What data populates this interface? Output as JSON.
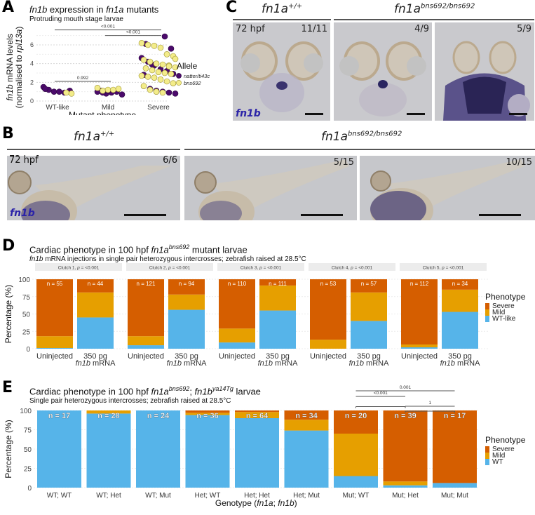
{
  "panels": {
    "A": {
      "letter": "A",
      "title_gene": "fn1b",
      "title_mid": " expression in ",
      "title_gene2": "fn1a",
      "title_end": " mutants",
      "subtitle": "Protruding mouth stage larvae",
      "ylabel_line1_gene": "fn1b",
      "ylabel_line1_rest": " mRNA levels",
      "ylabel_line2_start": "(normalised to ",
      "ylabel_line2_gene": "rpl13a",
      "ylabel_line2_end": ")",
      "xlabel": "Mutant phenotype",
      "legend_title": "Allele",
      "legend": [
        {
          "label": "natter/ti43c",
          "color": "#4b0a6b"
        },
        {
          "label": "bns692",
          "color": "#f3ec8a"
        }
      ],
      "comparisons": [
        {
          "from": "WT-like",
          "to": "Severe",
          "label": "<0.001"
        },
        {
          "from": "Mild",
          "to": "Severe",
          "label": "<0.001"
        },
        {
          "from": "WT-like",
          "to": "Mild",
          "label": "0.992"
        }
      ]
    },
    "B": {
      "letter": "B",
      "wt_label": "fn1a",
      "wt_sup": "+/+",
      "mut_label": "fn1a",
      "mut_sup": "bns692/bns692",
      "images": [
        {
          "stage": "72 hpf",
          "count": "6/6",
          "stain": "fn1b"
        },
        {
          "stage": "",
          "count": "5/15",
          "stain": ""
        },
        {
          "stage": "",
          "count": "10/15",
          "stain": ""
        }
      ]
    },
    "C": {
      "letter": "C",
      "wt_label": "fn1a",
      "wt_sup": "+/+",
      "mut_label": "fn1a",
      "mut_sup": "bns692/bns692",
      "images": [
        {
          "stage": "72 hpf",
          "count": "11/11",
          "stain": "fn1b"
        },
        {
          "stage": "",
          "count": "4/9",
          "stain": ""
        },
        {
          "stage": "",
          "count": "5/9",
          "stain": ""
        }
      ]
    },
    "D": {
      "letter": "D",
      "title_start": "Cardiac phenotype in 100 hpf ",
      "title_gene": "fn1a",
      "title_sup": "bns692",
      "title_end": " mutant larvae",
      "subtitle_gene": "fn1b",
      "subtitle_rest": " mRNA injections in single pair heterozygous intercrosses; zebrafish raised at 28.5°C"
    },
    "E": {
      "letter": "E",
      "title_start": "Cardiac phenotype in 100 hpf ",
      "title_gene": "fn1a",
      "title_sup": "bns692",
      "title_sep": "; ",
      "title_gene2": "fn1b",
      "title_sup2": "ya14Tg",
      "title_end": " larvae",
      "subtitle": "Single pair heterozygous intercrosses; zebrafish raised at 28.5°C",
      "xlabel_start": "Genotype (",
      "xlabel_gene1": "fn1a",
      "xlabel_sep": "; ",
      "xlabel_gene2": "fn1b",
      "xlabel_end": ")"
    }
  },
  "colors": {
    "severe": "#d55e00",
    "mild": "#e69f00",
    "wt": "#56b4e9",
    "purple": "#4b0a6b",
    "yellow": "#f3ec8a"
  },
  "chart_data": [
    {
      "id": "A",
      "type": "scatter",
      "title": "fn1b expression in fn1a mutants",
      "subtitle": "Protruding mouth stage larvae",
      "xlabel": "Mutant phenotype",
      "ylabel": "fn1b mRNA levels (normalised to rpl13a)",
      "categories": [
        "WT-like",
        "Mild",
        "Severe"
      ],
      "yticks": [
        0,
        2,
        4,
        6
      ],
      "ylim": [
        0,
        7.2
      ],
      "grid": true,
      "legend_position": "right",
      "series": [
        {
          "name": "natter/ti43c",
          "points": [
            {
              "x": "WT-like",
              "y": 1.5
            },
            {
              "x": "WT-like",
              "y": 1.2
            },
            {
              "x": "WT-like",
              "y": 1.0
            },
            {
              "x": "WT-like",
              "y": 1.0
            },
            {
              "x": "WT-like",
              "y": 0.9
            },
            {
              "x": "WT-like",
              "y": 1.1
            },
            {
              "x": "WT-like",
              "y": 1.3
            },
            {
              "x": "Mild",
              "y": 1.1
            },
            {
              "x": "Mild",
              "y": 0.8
            },
            {
              "x": "Mild",
              "y": 0.9
            },
            {
              "x": "Mild",
              "y": 1.0
            },
            {
              "x": "Mild",
              "y": 0.7
            },
            {
              "x": "Mild",
              "y": 1.0
            },
            {
              "x": "Mild",
              "y": 0.9
            },
            {
              "x": "Mild",
              "y": 1.1
            },
            {
              "x": "Severe",
              "y": 6.9
            },
            {
              "x": "Severe",
              "y": 5.6
            },
            {
              "x": "Severe",
              "y": 4.6
            },
            {
              "x": "Severe",
              "y": 4.2
            },
            {
              "x": "Severe",
              "y": 3.8
            },
            {
              "x": "Severe",
              "y": 3.4
            },
            {
              "x": "Severe",
              "y": 3.2
            },
            {
              "x": "Severe",
              "y": 2.9
            },
            {
              "x": "Severe",
              "y": 2.8
            },
            {
              "x": "Severe",
              "y": 1.3
            },
            {
              "x": "Severe",
              "y": 1.1
            },
            {
              "x": "Severe",
              "y": 1.0
            },
            {
              "x": "Severe",
              "y": 0.9
            },
            {
              "x": "Severe",
              "y": 0.8
            },
            {
              "x": "Severe",
              "y": 6.1
            },
            {
              "x": "Severe",
              "y": 3.9
            }
          ]
        },
        {
          "name": "bns692",
          "points": [
            {
              "x": "WT-like",
              "y": 0.9
            },
            {
              "x": "WT-like",
              "y": 0.8
            },
            {
              "x": "Mild",
              "y": 1.4
            },
            {
              "x": "Mild",
              "y": 1.1
            },
            {
              "x": "Mild",
              "y": 1.2
            },
            {
              "x": "Mild",
              "y": 1.2
            },
            {
              "x": "Mild",
              "y": 1.3
            },
            {
              "x": "Severe",
              "y": 6.2
            },
            {
              "x": "Severe",
              "y": 6.0
            },
            {
              "x": "Severe",
              "y": 5.9
            },
            {
              "x": "Severe",
              "y": 5.7
            },
            {
              "x": "Severe",
              "y": 5.0
            },
            {
              "x": "Severe",
              "y": 4.8
            },
            {
              "x": "Severe",
              "y": 4.4
            },
            {
              "x": "Severe",
              "y": 4.2
            },
            {
              "x": "Severe",
              "y": 4.0
            },
            {
              "x": "Severe",
              "y": 3.9
            },
            {
              "x": "Severe",
              "y": 3.8
            },
            {
              "x": "Severe",
              "y": 3.6
            },
            {
              "x": "Severe",
              "y": 3.5
            },
            {
              "x": "Severe",
              "y": 3.3
            },
            {
              "x": "Severe",
              "y": 3.1
            },
            {
              "x": "Severe",
              "y": 3.0
            },
            {
              "x": "Severe",
              "y": 2.9
            },
            {
              "x": "Severe",
              "y": 2.7
            },
            {
              "x": "Severe",
              "y": 2.6
            },
            {
              "x": "Severe",
              "y": 2.5
            },
            {
              "x": "Severe",
              "y": 2.3
            },
            {
              "x": "Severe",
              "y": 2.1
            },
            {
              "x": "Severe",
              "y": 1.9
            },
            {
              "x": "Severe",
              "y": 1.6
            },
            {
              "x": "Severe",
              "y": 1.2
            },
            {
              "x": "Severe",
              "y": 1.0
            },
            {
              "x": "Severe",
              "y": 0.9
            },
            {
              "x": "Severe",
              "y": 3.7
            },
            {
              "x": "Severe",
              "y": 4.5
            }
          ]
        }
      ],
      "annotations": [
        {
          "from": "WT-like",
          "to": "Severe",
          "label": "<0.001"
        },
        {
          "from": "Mild",
          "to": "Severe",
          "label": "<0.001"
        },
        {
          "from": "WT-like",
          "to": "Mild",
          "label": "0.992"
        }
      ]
    },
    {
      "id": "D",
      "type": "bar",
      "stacked": true,
      "title": "Cardiac phenotype in 100 hpf fn1a^bns692 mutant larvae",
      "subtitle": "fn1b mRNA injections in single pair heterozygous intercrosses; zebrafish raised at 28.5°C",
      "ylabel": "Percentage (%)",
      "yticks": [
        0,
        25,
        50,
        75,
        100
      ],
      "ylim": [
        0,
        100
      ],
      "legend_title": "Phenotype",
      "legend_position": "right",
      "legend": [
        "Severe",
        "Mild",
        "WT-like"
      ],
      "facets": [
        {
          "label_start": "Clutch 1, ",
          "p": "p",
          "label_end": " = <0.001",
          "bars": [
            {
              "line1": "Uninjected",
              "line2_gene": "",
              "line2_rest": "",
              "n": "n = 55",
              "wt": 1,
              "mild": 17,
              "severe": 82
            },
            {
              "line1": "350 pg",
              "line2_gene": "fn1b",
              "line2_rest": " mRNA",
              "n": "n = 44",
              "wt": 45,
              "mild": 36,
              "severe": 19
            }
          ]
        },
        {
          "label_start": "Clutch 2, ",
          "p": "p",
          "label_end": " = <0.001",
          "bars": [
            {
              "line1": "Uninjected",
              "line2_gene": "",
              "line2_rest": "",
              "n": "n = 121",
              "wt": 5,
              "mild": 13,
              "severe": 82
            },
            {
              "line1": "350 pg",
              "line2_gene": "fn1b",
              "line2_rest": " mRNA",
              "n": "n = 94",
              "wt": 56,
              "mild": 22,
              "severe": 22
            }
          ]
        },
        {
          "label_start": "Clutch 3, ",
          "p": "p",
          "label_end": " = <0.001",
          "bars": [
            {
              "line1": "Uninjected",
              "line2_gene": "",
              "line2_rest": "",
              "n": "n = 110",
              "wt": 9,
              "mild": 20,
              "severe": 71
            },
            {
              "line1": "350 pg",
              "line2_gene": "fn1b",
              "line2_rest": " mRNA",
              "n": "n = 111",
              "wt": 55,
              "mild": 36,
              "severe": 9
            }
          ]
        },
        {
          "label_start": "Clutch 4, ",
          "p": "p",
          "label_end": " = <0.001",
          "bars": [
            {
              "line1": "Uninjected",
              "line2_gene": "",
              "line2_rest": "",
              "n": "n = 53",
              "wt": 0,
              "mild": 13,
              "severe": 87
            },
            {
              "line1": "350 pg",
              "line2_gene": "fn1b",
              "line2_rest": " mRNA",
              "n": "n = 57",
              "wt": 40,
              "mild": 41,
              "severe": 19
            }
          ]
        },
        {
          "label_start": "Clutch 5, ",
          "p": "p",
          "label_end": " = <0.001",
          "bars": [
            {
              "line1": "Uninjected",
              "line2_gene": "",
              "line2_rest": "",
              "n": "n = 112",
              "wt": 2,
              "mild": 4,
              "severe": 94
            },
            {
              "line1": "350 pg",
              "line2_gene": "fn1b",
              "line2_rest": " mRNA",
              "n": "n = 34",
              "wt": 53,
              "mild": 32,
              "severe": 15
            }
          ]
        }
      ]
    },
    {
      "id": "E",
      "type": "bar",
      "stacked": true,
      "title": "Cardiac phenotype in 100 hpf fn1a^bns692; fn1b^ya14Tg larvae",
      "subtitle": "Single pair heterozygous intercrosses; zebrafish raised at 28.5°C",
      "xlabel": "Genotype (fn1a; fn1b)",
      "ylabel": "Percentage (%)",
      "yticks": [
        0,
        25,
        50,
        75,
        100
      ],
      "ylim": [
        0,
        100
      ],
      "legend_title": "Phenotype",
      "legend_position": "right",
      "legend": [
        "Severe",
        "Mild",
        "WT"
      ],
      "categories": [
        "WT; WT",
        "WT; Het",
        "WT; Mut",
        "Het; WT",
        "Het; Het",
        "Het; Mut",
        "Mut; WT",
        "Mut; Het",
        "Mut; Mut"
      ],
      "bars": [
        {
          "n": "n = 17",
          "wt": 100,
          "mild": 0,
          "severe": 0
        },
        {
          "n": "n = 28",
          "wt": 96,
          "mild": 4,
          "severe": 0
        },
        {
          "n": "n = 24",
          "wt": 100,
          "mild": 0,
          "severe": 0
        },
        {
          "n": "n = 36",
          "wt": 94,
          "mild": 3,
          "severe": 3
        },
        {
          "n": "n = 64",
          "wt": 90,
          "mild": 8,
          "severe": 2
        },
        {
          "n": "n = 34",
          "wt": 74,
          "mild": 14,
          "severe": 12
        },
        {
          "n": "n = 20",
          "wt": 15,
          "mild": 55,
          "severe": 30
        },
        {
          "n": "n = 39",
          "wt": 3,
          "mild": 5,
          "severe": 92
        },
        {
          "n": "n = 17",
          "wt": 6,
          "mild": 0,
          "severe": 94
        }
      ],
      "annotations": [
        {
          "from": "Mut; WT",
          "to": "Mut; Mut",
          "label": "0.001"
        },
        {
          "from": "Mut; WT",
          "to": "Mut; Het",
          "label": "<0.001"
        },
        {
          "from": "Mut; Het",
          "to": "Mut; Mut",
          "label": "1"
        }
      ]
    }
  ]
}
